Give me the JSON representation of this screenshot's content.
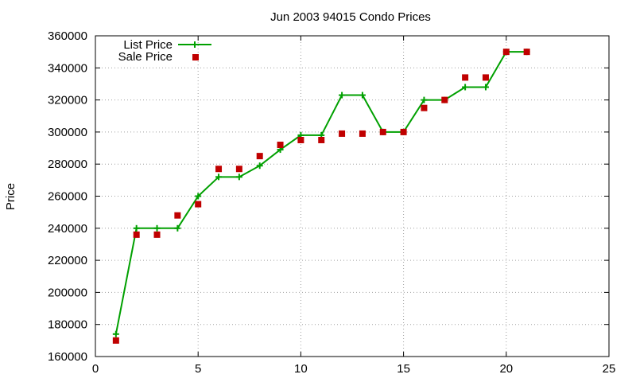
{
  "chart_data": {
    "type": "line",
    "title": "Jun 2003 94015 Condo Prices",
    "xlabel": "",
    "ylabel": "Price",
    "xlim": [
      0,
      25
    ],
    "ylim": [
      160000,
      360000
    ],
    "xticks": [
      0,
      5,
      10,
      15,
      20,
      25
    ],
    "yticks": [
      160000,
      180000,
      200000,
      220000,
      240000,
      260000,
      280000,
      300000,
      320000,
      340000,
      360000
    ],
    "grid": true,
    "legend_position": "top-left",
    "series": [
      {
        "name": "List Price",
        "kind": "line-with-plus-markers",
        "color": "#00a000",
        "points": [
          [
            1,
            174000
          ],
          [
            2,
            240000
          ],
          [
            3,
            240000
          ],
          [
            4,
            240000
          ],
          [
            5,
            260000
          ],
          [
            6,
            272000
          ],
          [
            7,
            272000
          ],
          [
            8,
            279000
          ],
          [
            9,
            289000
          ],
          [
            10,
            298000
          ],
          [
            11,
            298000
          ],
          [
            12,
            323000
          ],
          [
            13,
            323000
          ],
          [
            14,
            300000
          ],
          [
            15,
            300000
          ],
          [
            16,
            320000
          ],
          [
            17,
            320000
          ],
          [
            18,
            328000
          ],
          [
            19,
            328000
          ],
          [
            20,
            350000
          ],
          [
            21,
            350000
          ]
        ]
      },
      {
        "name": "Sale Price",
        "kind": "square-points",
        "color": "#c00000",
        "points": [
          [
            1,
            170000
          ],
          [
            2,
            236000
          ],
          [
            3,
            236000
          ],
          [
            4,
            248000
          ],
          [
            5,
            255000
          ],
          [
            6,
            277000
          ],
          [
            7,
            277000
          ],
          [
            8,
            285000
          ],
          [
            9,
            292000
          ],
          [
            10,
            295000
          ],
          [
            11,
            295000
          ],
          [
            12,
            299000
          ],
          [
            13,
            299000
          ],
          [
            14,
            300000
          ],
          [
            15,
            300000
          ],
          [
            16,
            315000
          ],
          [
            17,
            320000
          ],
          [
            18,
            334000
          ],
          [
            19,
            334000
          ],
          [
            20,
            350000
          ],
          [
            21,
            350000
          ]
        ]
      }
    ]
  }
}
